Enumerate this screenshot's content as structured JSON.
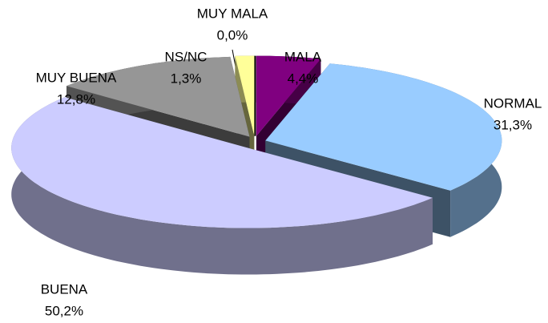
{
  "chart_data": {
    "type": "pie",
    "pie_3d": true,
    "exploded": true,
    "categories": [
      "MUY MALA",
      "MALA",
      "NORMAL",
      "BUENA",
      "MUY BUENA",
      "NS/NC"
    ],
    "values": [
      0.0,
      4.4,
      31.3,
      50.2,
      12.8,
      1.3
    ],
    "value_labels": [
      "0,0%",
      "4,4%",
      "31,3%",
      "50,2%",
      "12,8%",
      "1,3%"
    ],
    "colors": [
      "#000000",
      "#800080",
      "#99ccff",
      "#ccccff",
      "#969696",
      "#ffff99"
    ]
  }
}
